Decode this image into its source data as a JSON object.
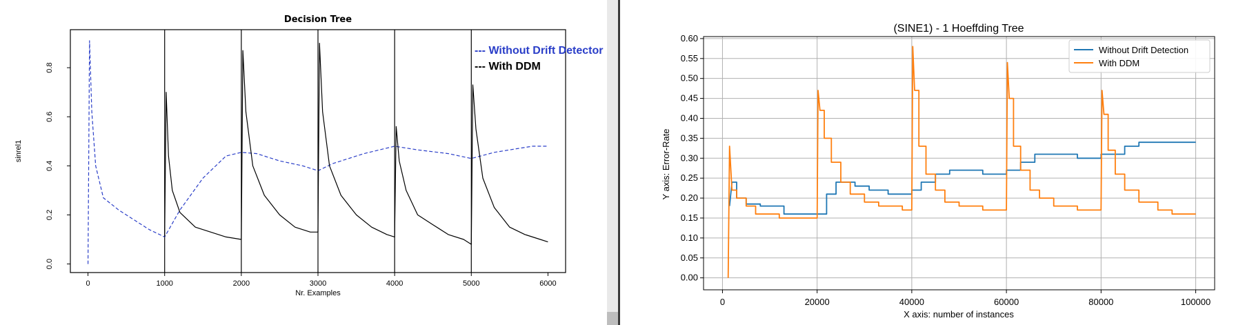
{
  "chart_data": [
    {
      "type": "line",
      "title": "Decision Tree",
      "xlabel": "Nr. Examples",
      "ylabel": "sinrel1",
      "xlim": [
        -230,
        6230
      ],
      "ylim": [
        -0.035,
        0.955
      ],
      "xticks": [
        0,
        1000,
        2000,
        3000,
        4000,
        5000,
        6000
      ],
      "xtick_labels": [
        "0",
        "1000",
        "2000",
        "3000",
        "4000",
        "5000",
        "6000"
      ],
      "yticks": [
        0.0,
        0.2,
        0.4,
        0.6,
        0.8
      ],
      "ytick_labels": [
        "0.0",
        "0.2",
        "0.4",
        "0.6",
        "0.8"
      ],
      "legend": "top-right",
      "grid": false,
      "series": [
        {
          "name": "Without Drift Detector",
          "color": "#2a3ec8",
          "dash": "dashed",
          "points": [
            [
              0,
              0
            ],
            [
              20,
              0.91
            ],
            [
              50,
              0.62
            ],
            [
              100,
              0.4
            ],
            [
              200,
              0.27
            ],
            [
              400,
              0.22
            ],
            [
              600,
              0.18
            ],
            [
              800,
              0.14
            ],
            [
              1000,
              0.11
            ],
            [
              1200,
              0.22
            ],
            [
              1500,
              0.35
            ],
            [
              1800,
              0.44
            ],
            [
              2000,
              0.455
            ],
            [
              2200,
              0.45
            ],
            [
              2500,
              0.42
            ],
            [
              2800,
              0.4
            ],
            [
              3000,
              0.38
            ],
            [
              3200,
              0.41
            ],
            [
              3600,
              0.45
            ],
            [
              4000,
              0.48
            ],
            [
              4300,
              0.465
            ],
            [
              4700,
              0.45
            ],
            [
              5000,
              0.43
            ],
            [
              5300,
              0.455
            ],
            [
              5600,
              0.47
            ],
            [
              5800,
              0.48
            ],
            [
              6000,
              0.48
            ]
          ]
        },
        {
          "name": "With DDM",
          "color": "#000000",
          "dash": "solid",
          "points": [
            [
              1000,
              0.11
            ],
            [
              1020,
              0.7
            ],
            [
              1050,
              0.44
            ],
            [
              1100,
              0.3
            ],
            [
              1200,
              0.21
            ],
            [
              1400,
              0.15
            ],
            [
              1600,
              0.13
            ],
            [
              1800,
              0.11
            ],
            [
              2000,
              0.1
            ],
            [
              2020,
              0.87
            ],
            [
              2060,
              0.62
            ],
            [
              2150,
              0.4
            ],
            [
              2300,
              0.28
            ],
            [
              2500,
              0.2
            ],
            [
              2700,
              0.15
            ],
            [
              2900,
              0.13
            ],
            [
              3000,
              0.13
            ],
            [
              3020,
              0.9
            ],
            [
              3060,
              0.62
            ],
            [
              3150,
              0.4
            ],
            [
              3300,
              0.28
            ],
            [
              3500,
              0.2
            ],
            [
              3700,
              0.15
            ],
            [
              3900,
              0.12
            ],
            [
              4000,
              0.11
            ],
            [
              4020,
              0.56
            ],
            [
              4060,
              0.42
            ],
            [
              4150,
              0.3
            ],
            [
              4300,
              0.2
            ],
            [
              4500,
              0.16
            ],
            [
              4700,
              0.12
            ],
            [
              4900,
              0.1
            ],
            [
              5000,
              0.08
            ],
            [
              5020,
              0.73
            ],
            [
              5060,
              0.55
            ],
            [
              5150,
              0.35
            ],
            [
              5300,
              0.23
            ],
            [
              5500,
              0.15
            ],
            [
              5700,
              0.12
            ],
            [
              5900,
              0.1
            ],
            [
              6000,
              0.09
            ]
          ]
        }
      ]
    },
    {
      "type": "line",
      "title": "(SINE1) - 1 Hoeffding Tree",
      "xlabel": "X axis: number of instances",
      "ylabel": "Y axis: Error-Rate",
      "xlim": [
        -4000,
        104000
      ],
      "ylim": [
        -0.03,
        0.605
      ],
      "xticks": [
        0,
        20000,
        40000,
        60000,
        80000,
        100000
      ],
      "xtick_labels": [
        "0",
        "20000",
        "40000",
        "60000",
        "80000",
        "100000"
      ],
      "yticks": [
        0.0,
        0.05,
        0.1,
        0.15,
        0.2,
        0.25,
        0.3,
        0.35,
        0.4,
        0.45,
        0.5,
        0.55,
        0.6
      ],
      "ytick_labels": [
        "0.00",
        "0.05",
        "0.10",
        "0.15",
        "0.20",
        "0.25",
        "0.30",
        "0.35",
        "0.40",
        "0.45",
        "0.50",
        "0.55",
        "0.60"
      ],
      "legend": "top-right",
      "grid": true,
      "series": [
        {
          "name": "Without Drift Detection",
          "color": "#1f77b4",
          "dash": "solid",
          "points": [
            [
              1500,
              0.18
            ],
            [
              2000,
              0.24
            ],
            [
              3000,
              0.2
            ],
            [
              5000,
              0.185
            ],
            [
              8000,
              0.18
            ],
            [
              13000,
              0.16
            ],
            [
              20000,
              0.16
            ],
            [
              22000,
              0.21
            ],
            [
              24000,
              0.24
            ],
            [
              28000,
              0.23
            ],
            [
              31000,
              0.22
            ],
            [
              35000,
              0.21
            ],
            [
              40000,
              0.22
            ],
            [
              42000,
              0.24
            ],
            [
              45000,
              0.26
            ],
            [
              48000,
              0.27
            ],
            [
              55000,
              0.26
            ],
            [
              60000,
              0.27
            ],
            [
              63000,
              0.29
            ],
            [
              66000,
              0.31
            ],
            [
              75000,
              0.3
            ],
            [
              80000,
              0.31
            ],
            [
              85000,
              0.33
            ],
            [
              88000,
              0.34
            ],
            [
              100000,
              0.34
            ]
          ]
        },
        {
          "name": "With DDM",
          "color": "#ff7f0e",
          "dash": "solid",
          "points": [
            [
              1200,
              0.0
            ],
            [
              1500,
              0.33
            ],
            [
              2000,
              0.22
            ],
            [
              3000,
              0.2
            ],
            [
              5000,
              0.18
            ],
            [
              7000,
              0.16
            ],
            [
              12000,
              0.15
            ],
            [
              20000,
              0.15
            ],
            [
              20200,
              0.47
            ],
            [
              20600,
              0.42
            ],
            [
              21500,
              0.35
            ],
            [
              23000,
              0.29
            ],
            [
              25000,
              0.24
            ],
            [
              27000,
              0.21
            ],
            [
              30000,
              0.19
            ],
            [
              33000,
              0.18
            ],
            [
              38000,
              0.17
            ],
            [
              40000,
              0.17
            ],
            [
              40200,
              0.58
            ],
            [
              40600,
              0.47
            ],
            [
              41500,
              0.33
            ],
            [
              43000,
              0.26
            ],
            [
              45000,
              0.22
            ],
            [
              47000,
              0.19
            ],
            [
              50000,
              0.18
            ],
            [
              55000,
              0.17
            ],
            [
              60000,
              0.17
            ],
            [
              60200,
              0.54
            ],
            [
              60600,
              0.45
            ],
            [
              61500,
              0.33
            ],
            [
              63000,
              0.27
            ],
            [
              65000,
              0.22
            ],
            [
              67000,
              0.2
            ],
            [
              70000,
              0.18
            ],
            [
              75000,
              0.17
            ],
            [
              80000,
              0.17
            ],
            [
              80200,
              0.47
            ],
            [
              80600,
              0.41
            ],
            [
              81500,
              0.32
            ],
            [
              83000,
              0.26
            ],
            [
              85000,
              0.22
            ],
            [
              88000,
              0.19
            ],
            [
              92000,
              0.17
            ],
            [
              95000,
              0.16
            ],
            [
              100000,
              0.16
            ]
          ]
        }
      ]
    }
  ]
}
